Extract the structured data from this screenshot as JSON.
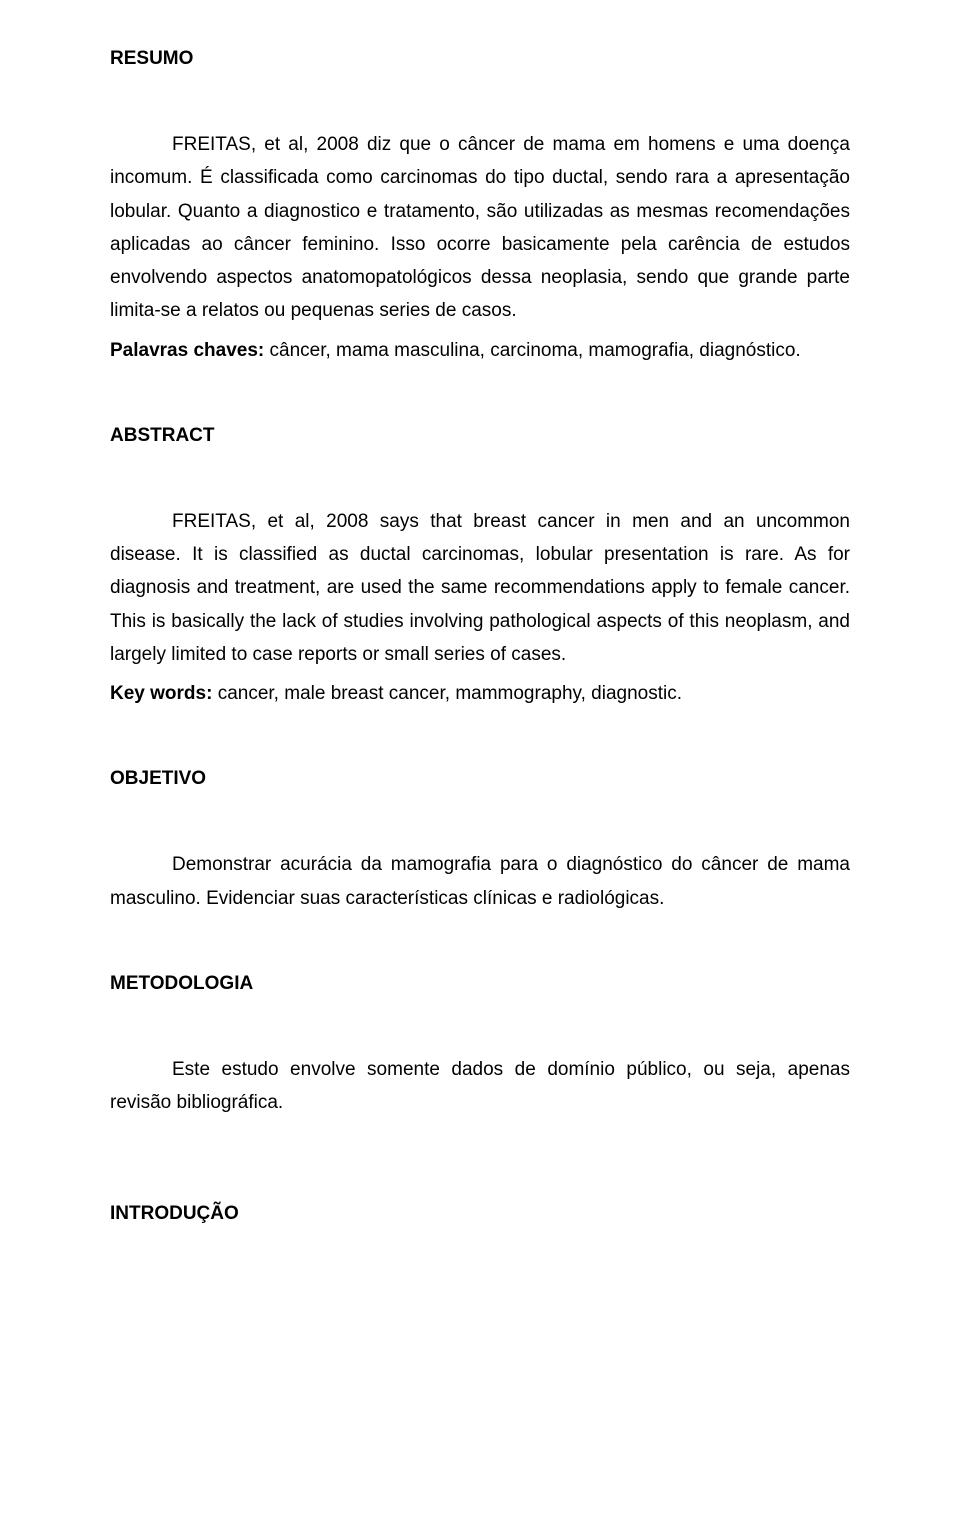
{
  "doc": {
    "text_color": "#000000",
    "background_color": "#ffffff",
    "font_family": "Arial",
    "base_font_size_pt": 14,
    "line_height": 1.75
  },
  "resumo": {
    "heading": "RESUMO",
    "body": "FREITAS, et al, 2008 diz que o câncer de mama em homens e uma doença incomum. É classificada como carcinomas do tipo ductal, sendo rara a apresentação lobular. Quanto a diagnostico e tratamento, são utilizadas as mesmas recomendações aplicadas ao câncer feminino. Isso ocorre basicamente pela carência de estudos envolvendo aspectos anatomopatológicos dessa neoplasia, sendo que grande parte limita-se a relatos ou pequenas series de casos.",
    "keywords_label": "Palavras chaves:",
    "keywords_text": " câncer, mama masculina, carcinoma, mamografia, diagnóstico."
  },
  "abstract": {
    "heading": "ABSTRACT",
    "body": "FREITAS, et al, 2008 says that breast cancer in men and an uncommon disease. It is classified as ductal carcinomas, lobular presentation is rare. As for diagnosis and treatment, are used the same recommendations apply to female cancer. This is basically the lack of studies involving pathological aspects of this neoplasm, and largely limited to case reports or small series of cases.",
    "keywords_label": "Key words:",
    "keywords_text": " cancer, male breast cancer, mammography, diagnostic."
  },
  "objetivo": {
    "heading": "OBJETIVO",
    "body": "Demonstrar acurácia da mamografia para o diagnóstico do câncer de mama masculino. Evidenciar suas características clínicas e radiológicas."
  },
  "metodologia": {
    "heading": "METODOLOGIA",
    "body": "Este estudo envolve somente dados de domínio público, ou seja, apenas revisão bibliográfica."
  },
  "introducao": {
    "heading": "INTRODUÇÃO"
  }
}
